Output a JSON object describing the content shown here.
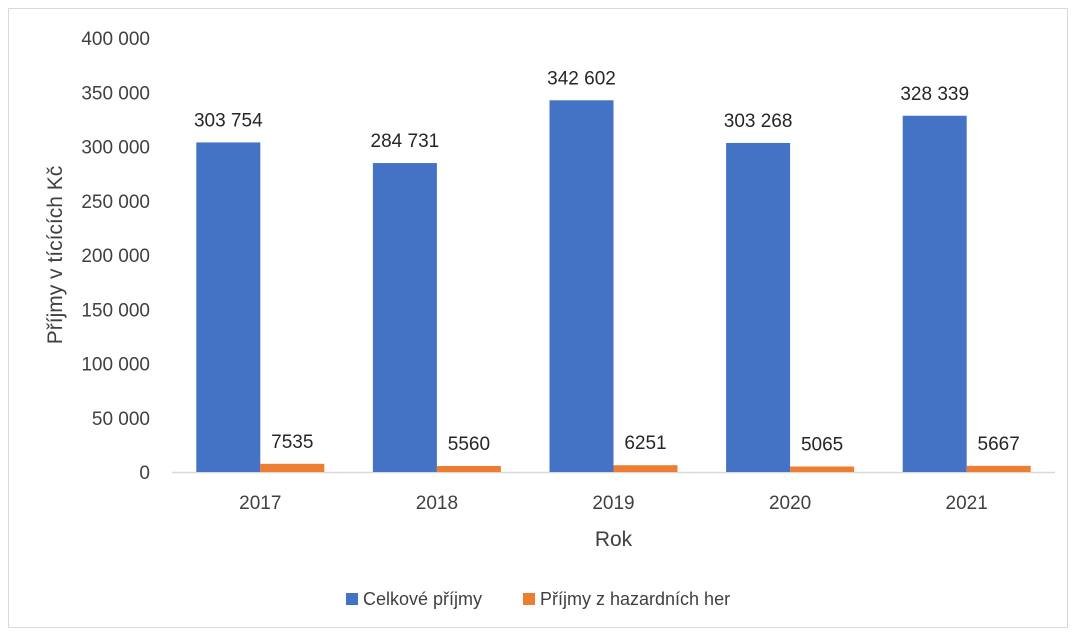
{
  "chart_data": {
    "type": "bar",
    "categories": [
      "2017",
      "2018",
      "2019",
      "2020",
      "2021"
    ],
    "series": [
      {
        "name": "Celkové příjmy",
        "values": [
          303754,
          284731,
          342602,
          303268,
          328339
        ],
        "labels": [
          "303 754",
          "284 731",
          "342 602",
          "303 268",
          "328 339"
        ],
        "color": "#4472C4"
      },
      {
        "name": "Příjmy z hazardních her",
        "values": [
          7535,
          5560,
          6251,
          5065,
          5667
        ],
        "labels": [
          "7535",
          "5560",
          "6251",
          "5065",
          "5667"
        ],
        "color": "#ED7D31"
      }
    ],
    "title": "",
    "xlabel": "Rok",
    "ylabel": "Příjmy v tícících Kč",
    "ylim": [
      0,
      400000
    ],
    "yticks": [
      0,
      50000,
      100000,
      150000,
      200000,
      250000,
      300000,
      350000,
      400000
    ],
    "ytick_labels": [
      "0",
      "50 000",
      "100 000",
      "150 000",
      "200 000",
      "250 000",
      "300 000",
      "350 000",
      "400 000"
    ],
    "grid": false,
    "legend_position": "bottom"
  }
}
